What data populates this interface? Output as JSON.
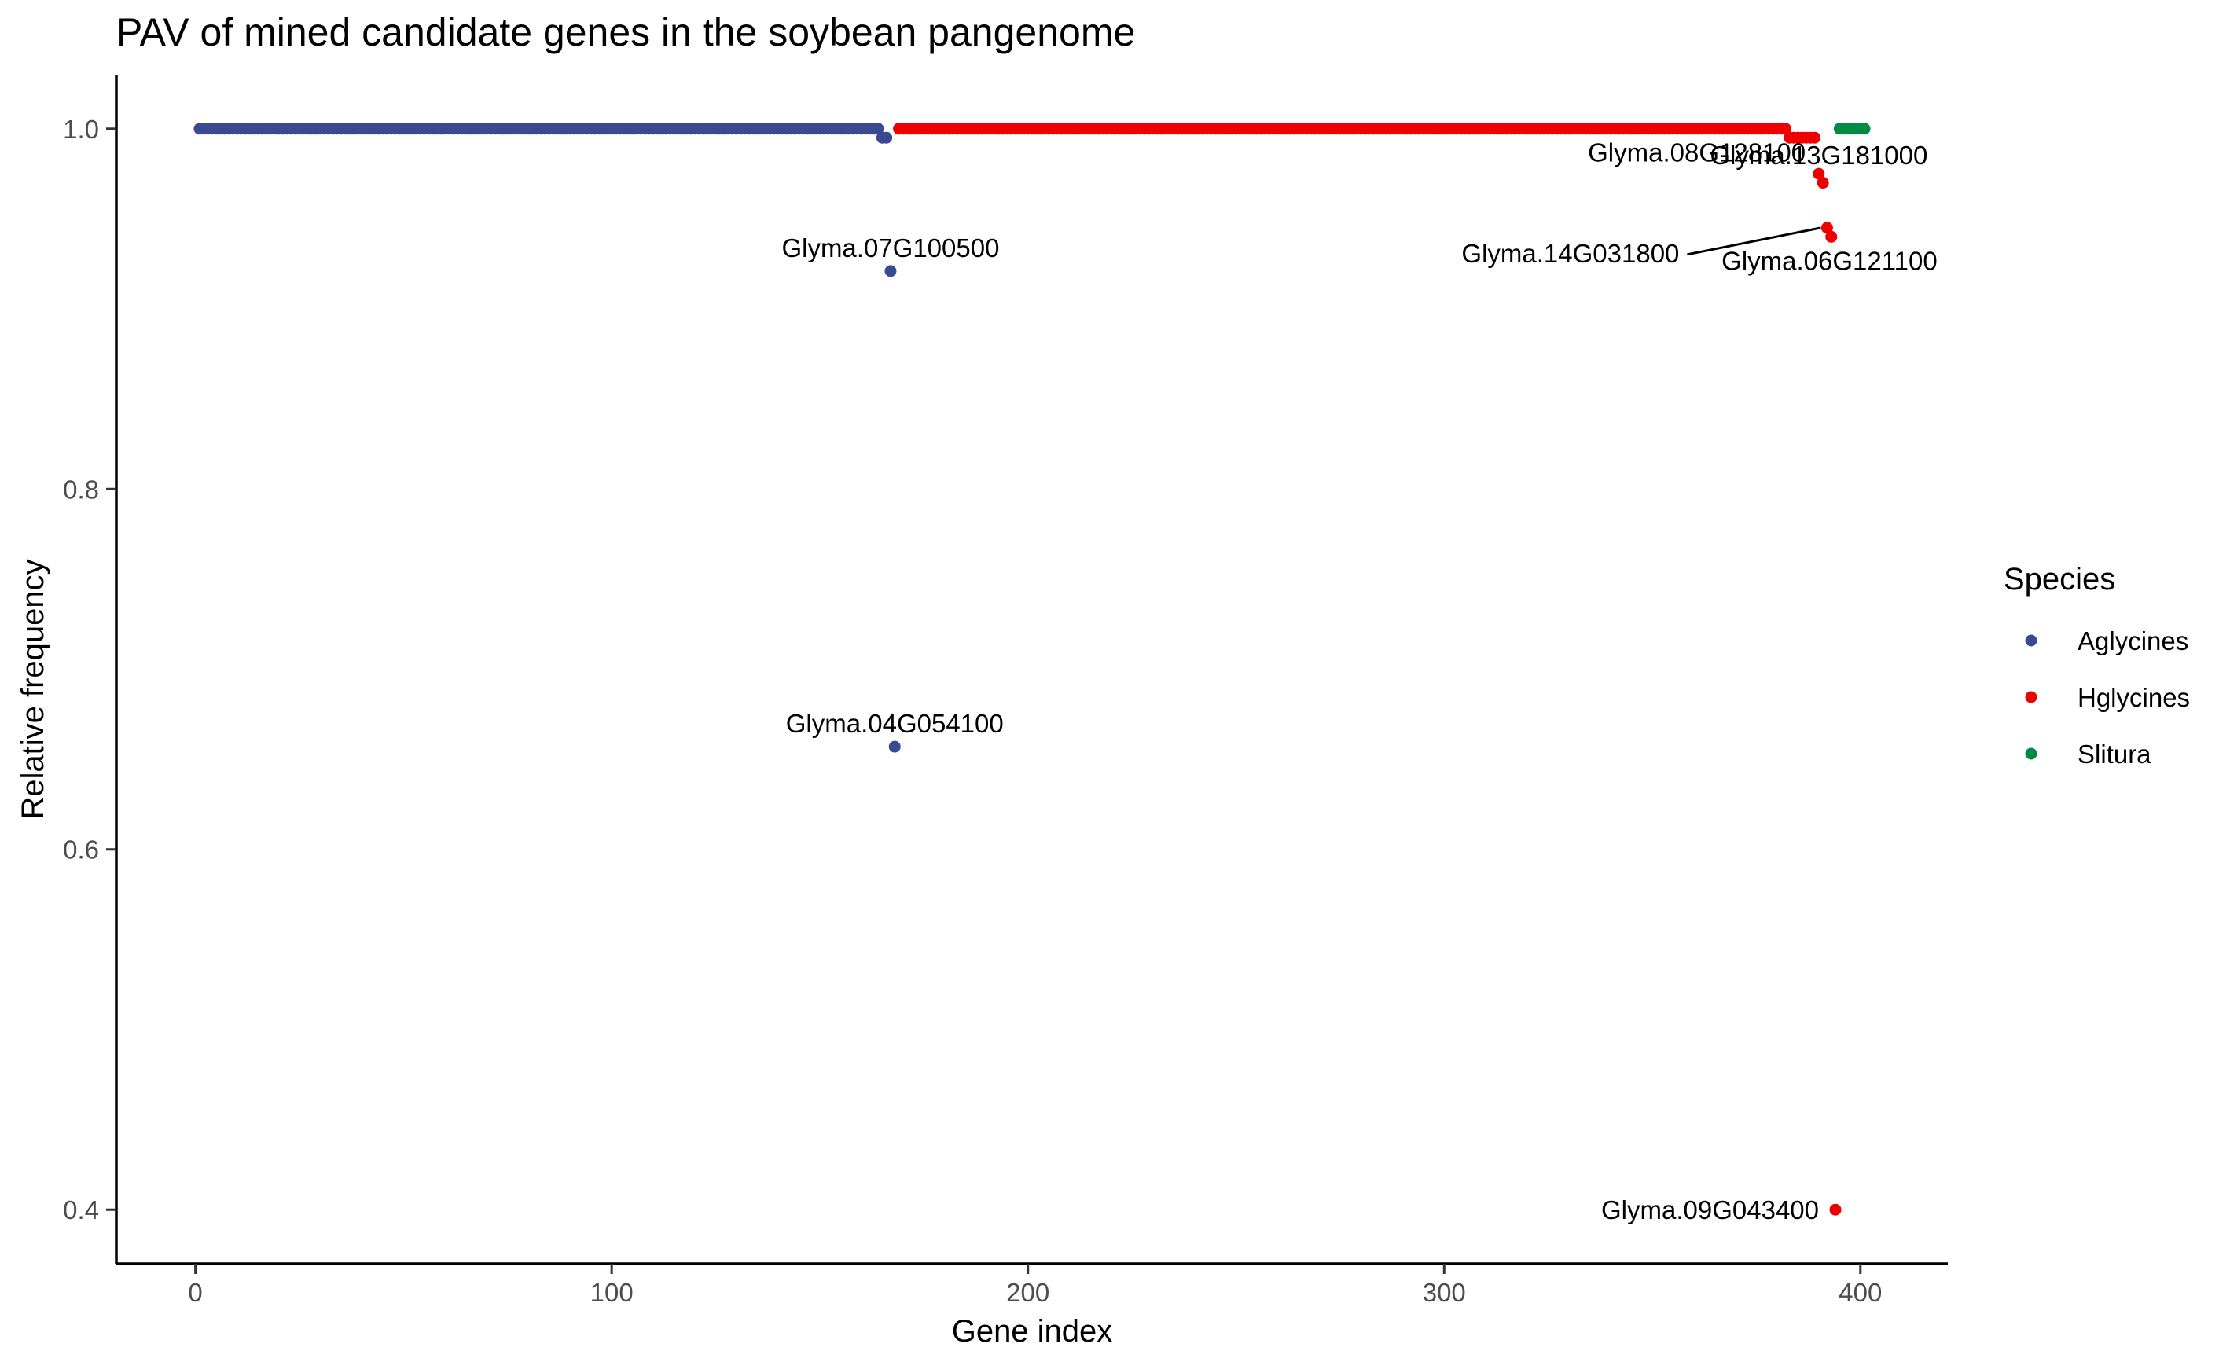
{
  "chart_data": {
    "type": "scatter",
    "title": "PAV of mined candidate genes in the soybean pangenome",
    "xlabel": "Gene index",
    "ylabel": "Relative frequency",
    "xlim": [
      -19,
      421
    ],
    "ylim": [
      0.37,
      1.03
    ],
    "x_ticks": [
      0,
      100,
      200,
      300,
      400
    ],
    "y_ticks": [
      0.4,
      0.6,
      0.8,
      1.0
    ],
    "x_tick_labels": [
      "0",
      "100",
      "200",
      "300",
      "400"
    ],
    "y_tick_labels": [
      "0.4",
      "0.6",
      "0.8",
      "1.0"
    ],
    "grid": false,
    "legend": {
      "title": "Species",
      "position": "right",
      "entries": [
        {
          "name": "Aglycines",
          "color": "#3B4992"
        },
        {
          "name": "Hglycines",
          "color": "#EE0000"
        },
        {
          "name": "Slitura",
          "color": "#008B45"
        }
      ]
    },
    "series": [
      {
        "name": "Aglycines",
        "color": "#3B4992",
        "runs": [
          {
            "x_from": 1,
            "x_to": 164,
            "y": 1.0
          }
        ],
        "points": [
          {
            "x": 165,
            "y": 0.995
          },
          {
            "x": 166,
            "y": 0.995
          },
          {
            "x": 167,
            "y": 0.921
          },
          {
            "x": 168,
            "y": 0.657
          }
        ]
      },
      {
        "name": "Hglycines",
        "color": "#EE0000",
        "runs": [
          {
            "x_from": 169,
            "x_to": 382,
            "y": 1.0
          },
          {
            "x_from": 383,
            "x_to": 389,
            "y": 0.995
          }
        ],
        "points": [
          {
            "x": 390,
            "y": 0.975
          },
          {
            "x": 391,
            "y": 0.97
          },
          {
            "x": 392,
            "y": 0.945
          },
          {
            "x": 393,
            "y": 0.94
          },
          {
            "x": 394,
            "y": 0.4
          }
        ]
      },
      {
        "name": "Slitura",
        "color": "#008B45",
        "runs": [
          {
            "x_from": 395,
            "x_to": 401,
            "y": 1.0
          }
        ],
        "points": []
      }
    ],
    "annotations": [
      {
        "label": "Glyma.07G100500",
        "x": 167,
        "y": 0.921
      },
      {
        "label": "Glyma.04G054100",
        "x": 168,
        "y": 0.657
      },
      {
        "label": "Glyma.13G181000",
        "x": 390,
        "y": 0.975
      },
      {
        "label": "Glyma.08G128100",
        "x": 391,
        "y": 0.97
      },
      {
        "label": "Glyma.14G031800",
        "x": 392,
        "y": 0.945
      },
      {
        "label": "Glyma.06G121100",
        "x": 393,
        "y": 0.94
      },
      {
        "label": "Glyma.09G043400",
        "x": 394,
        "y": 0.4
      }
    ]
  }
}
